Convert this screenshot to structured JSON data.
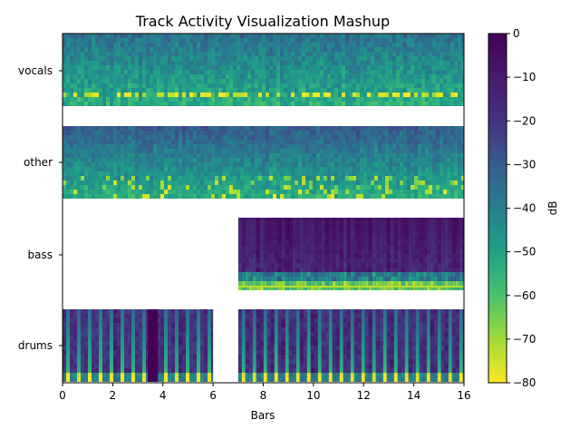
{
  "chart_data": {
    "type": "heatmap",
    "title": "Track Activity Visualization Mashup",
    "xlabel": "Bars",
    "xlim": [
      0,
      16
    ],
    "x_ticks": [
      0,
      2,
      4,
      6,
      8,
      10,
      12,
      14,
      16
    ],
    "tracks": [
      "vocals",
      "other",
      "bass",
      "drums"
    ],
    "segments": [
      {
        "track": "vocals",
        "start": 0,
        "end": 16
      },
      {
        "track": "other",
        "start": 0,
        "end": 16
      },
      {
        "track": "bass",
        "start": 7,
        "end": 16
      },
      {
        "track": "drums",
        "start": 0,
        "end": 6
      },
      {
        "track": "drums",
        "start": 7,
        "end": 16
      }
    ],
    "drums_quiet_region": [
      3.4,
      3.8
    ],
    "colorbar": {
      "label": "dB",
      "range": [
        -80,
        0
      ],
      "ticks": [
        -80,
        -70,
        -60,
        -50,
        -40,
        -30,
        -20,
        -10,
        0
      ],
      "colormap": "viridis",
      "low_color": "#440154",
      "high_color": "#fde725"
    }
  }
}
